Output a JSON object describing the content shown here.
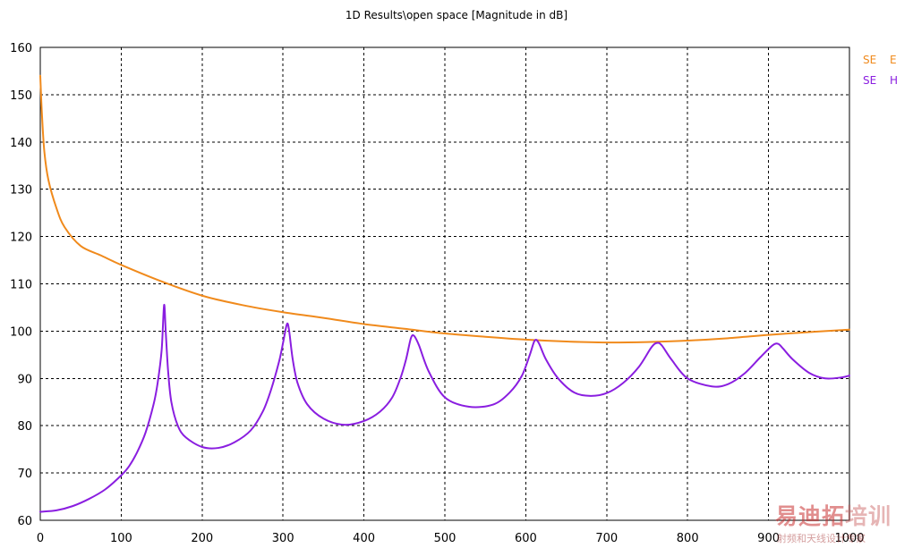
{
  "chart_data": {
    "type": "line",
    "title": "1D Results\\open space [Magnitude in dB]",
    "xlabel": "",
    "ylabel": "",
    "xlim": [
      0,
      1000
    ],
    "ylim": [
      60,
      160
    ],
    "x_ticks": [
      0,
      100,
      200,
      300,
      400,
      500,
      600,
      700,
      800,
      900,
      1000
    ],
    "y_ticks": [
      60,
      70,
      80,
      90,
      100,
      110,
      120,
      130,
      140,
      150,
      160
    ],
    "grid": true,
    "grid_style": "dashed",
    "legend_position": "top-right",
    "series": [
      {
        "name": "SE E",
        "name_parts": [
          "SE",
          "E"
        ],
        "color": "#f08a1c",
        "x": [
          0,
          2,
          5,
          10,
          20,
          30,
          50,
          75,
          100,
          150,
          200,
          250,
          300,
          350,
          400,
          450,
          500,
          550,
          600,
          650,
          700,
          750,
          800,
          850,
          900,
          950,
          1000
        ],
        "y": [
          154,
          146,
          138,
          132,
          126,
          122,
          118,
          116,
          114,
          110.5,
          107.5,
          105.5,
          104,
          102.8,
          101.5,
          100.5,
          99.5,
          98.8,
          98.2,
          97.8,
          97.6,
          97.7,
          98.0,
          98.5,
          99.2,
          99.8,
          100.3
        ]
      },
      {
        "name": "SE H",
        "name_parts": [
          "SE",
          "H"
        ],
        "color": "#8a1ee0",
        "x": [
          0,
          20,
          40,
          60,
          80,
          100,
          110,
          120,
          130,
          140,
          145,
          150,
          153,
          155,
          158,
          162,
          170,
          180,
          200,
          220,
          240,
          260,
          275,
          285,
          295,
          300,
          304,
          306,
          308,
          312,
          318,
          330,
          350,
          375,
          400,
          420,
          435,
          445,
          452,
          458,
          462,
          468,
          480,
          500,
          530,
          560,
          580,
          595,
          605,
          611,
          616,
          625,
          640,
          660,
          680,
          700,
          720,
          740,
          755,
          762,
          768,
          780,
          800,
          830,
          850,
          870,
          890,
          905,
          912,
          918,
          930,
          950,
          970,
          990,
          1000
        ],
        "y": [
          61.8,
          62.1,
          63,
          64.5,
          66.5,
          69.5,
          71.5,
          74.5,
          78.5,
          84.5,
          89,
          96,
          105.5,
          100,
          91.5,
          85,
          80,
          77.5,
          75.5,
          75.3,
          76.5,
          79,
          83,
          87.5,
          93.5,
          97.5,
          101,
          101.5,
          99.5,
          94,
          89,
          84.5,
          81.5,
          80.2,
          81,
          83,
          86,
          90,
          94,
          98.5,
          99,
          97,
          91.5,
          86,
          84,
          84.5,
          87,
          90.5,
          95,
          98,
          97.5,
          94,
          90,
          87,
          86.3,
          86.9,
          89,
          92.5,
          96.5,
          97.5,
          97,
          94,
          90,
          88.3,
          88.8,
          91,
          94.5,
          97,
          97.3,
          96.3,
          94,
          91.2,
          90,
          90.2,
          90.6
        ]
      }
    ]
  },
  "watermark": {
    "text_big_1": "易迪拓",
    "text_big_2": "培训",
    "text_small": "射频和天线设计专家"
  }
}
